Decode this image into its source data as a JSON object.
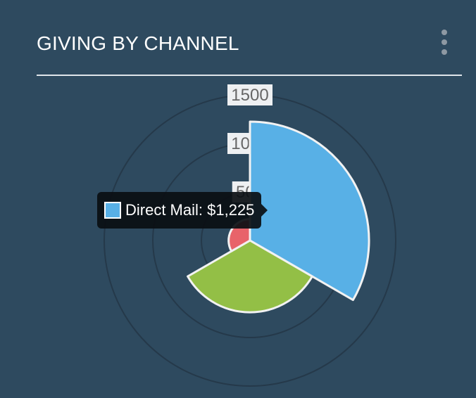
{
  "header": {
    "title": "GIVING BY CHANNEL",
    "menu_icon": "kebab-menu-icon"
  },
  "tooltip": {
    "label": "Direct Mail: $1,225",
    "swatch_color": "#58b0e6"
  },
  "chart_data": {
    "type": "polarArea",
    "title": "GIVING BY CHANNEL",
    "scale": {
      "min": 0,
      "max": 1500,
      "ticks": [
        {
          "value": 500,
          "label": "500"
        },
        {
          "value": 1000,
          "label": "1000"
        },
        {
          "value": 1500,
          "label": "1500"
        }
      ],
      "grid": true
    },
    "series": [
      {
        "category": "Direct Mail",
        "value": 1225,
        "color": "#58b0e6"
      },
      {
        "category": "",
        "value": 740,
        "color": "#93bf46"
      },
      {
        "category": "",
        "value": 220,
        "color": "#e8636a"
      }
    ],
    "colors": {
      "background": "#2e4a5f",
      "gridline": "#25394a",
      "tick_label_bg": "#eef0f2",
      "tick_label_text": "#666666",
      "segment_border": "#f2f2f2"
    }
  }
}
